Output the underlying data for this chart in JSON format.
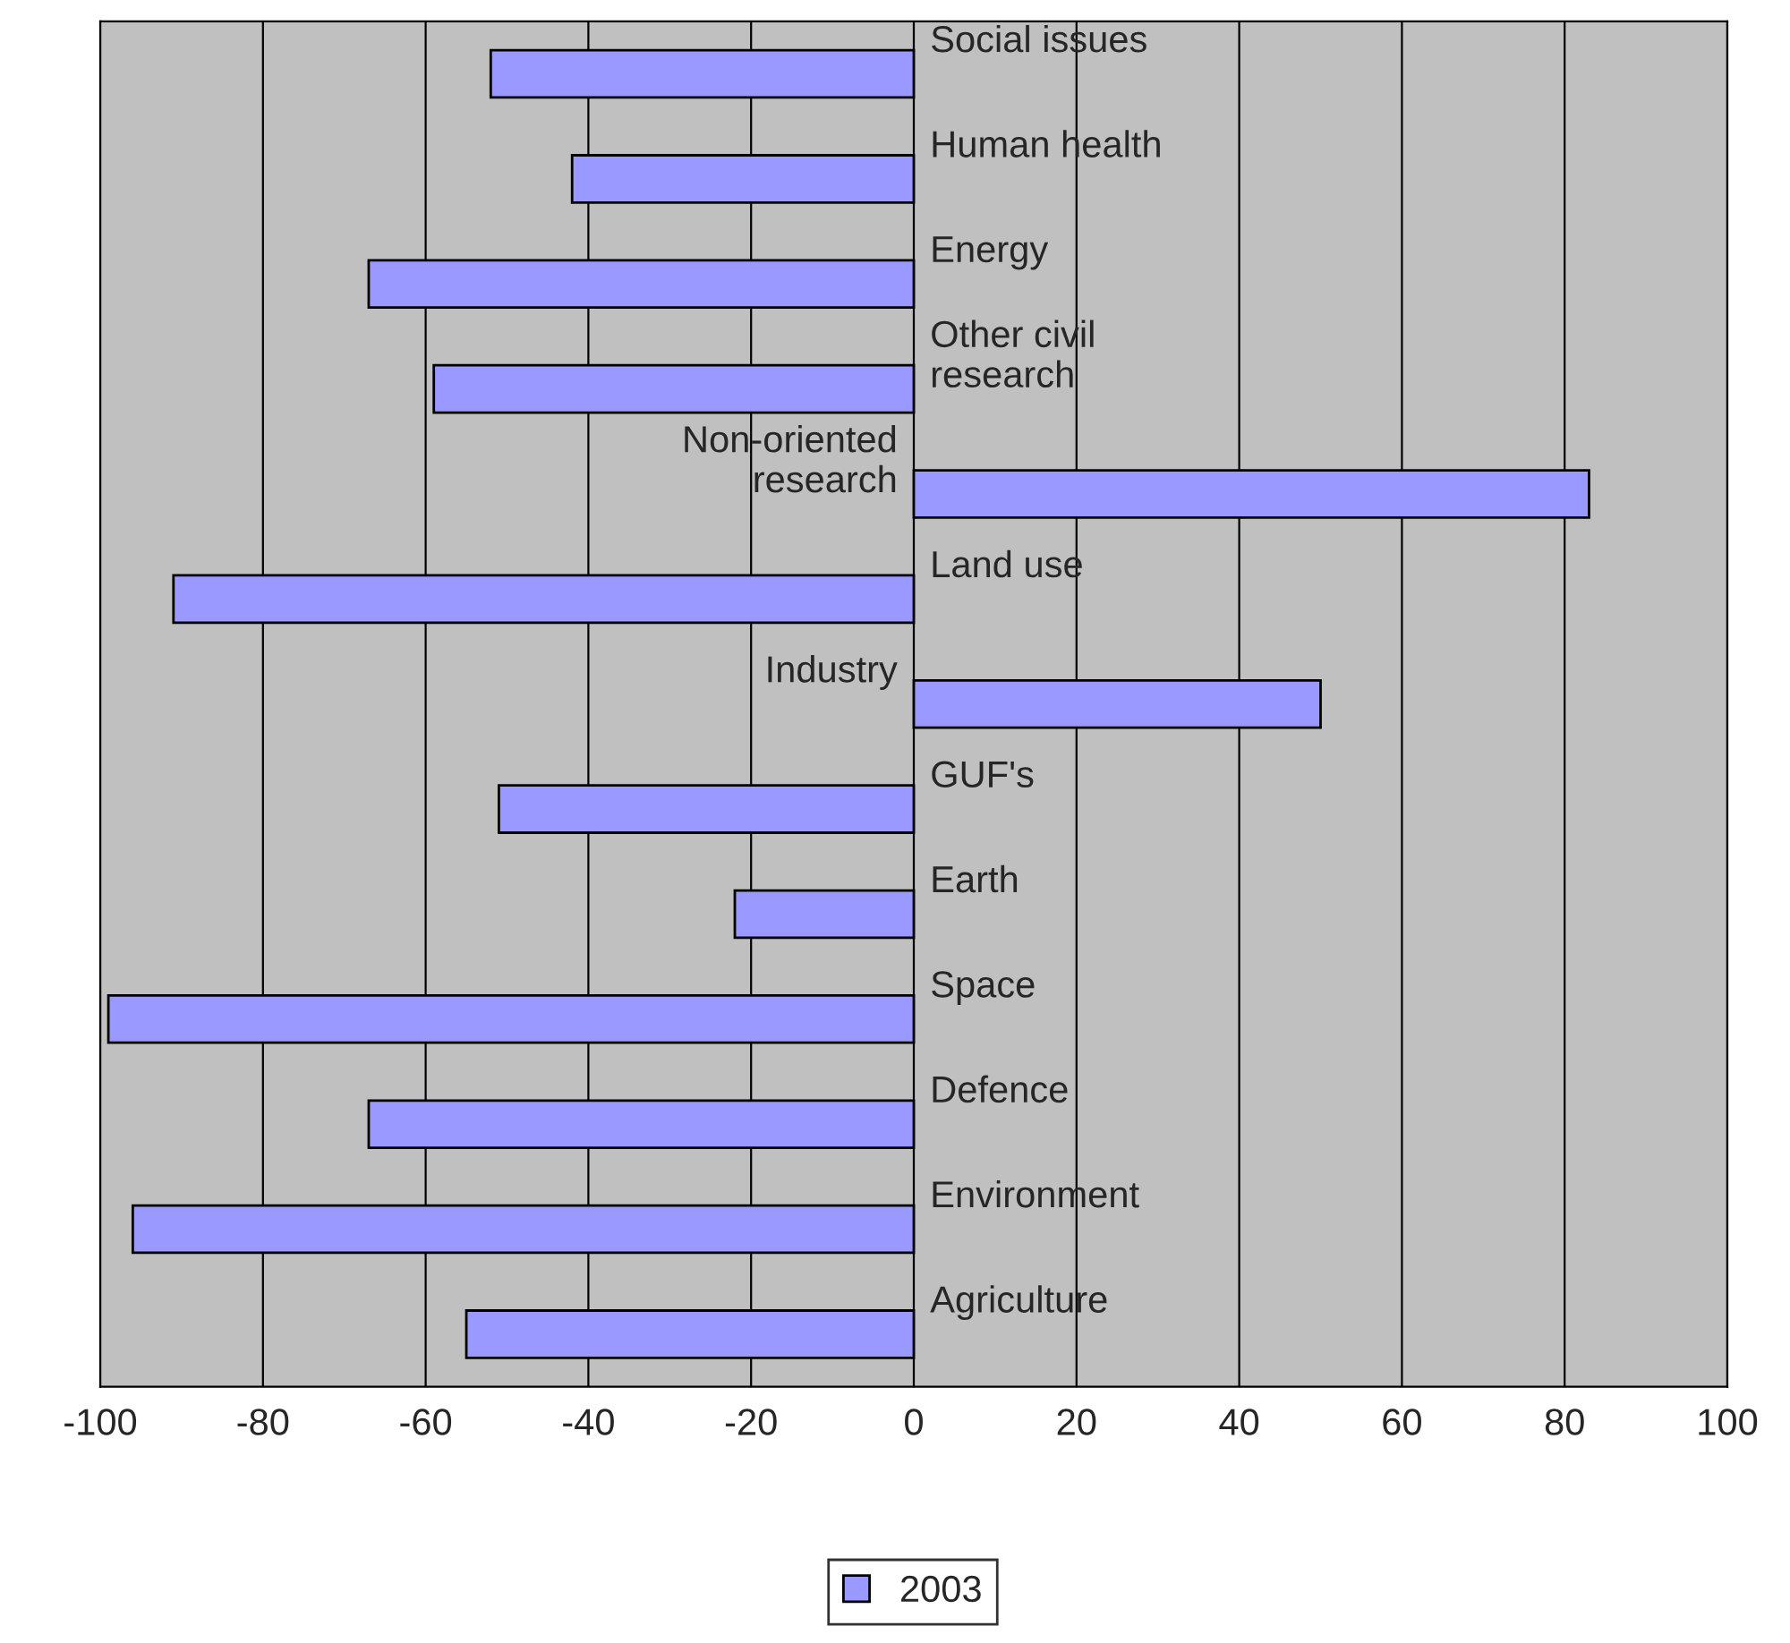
{
  "chart_data": {
    "type": "bar",
    "orientation": "horizontal",
    "categories": [
      "Social issues",
      "Human health",
      "Energy",
      "Other civil\nresearch",
      "Non-oriented\nresearch",
      "Land use",
      "Industry",
      "GUF's",
      "Earth",
      "Space",
      "Defence",
      "Environment",
      "Agriculture"
    ],
    "series": [
      {
        "name": "2003",
        "color": "#9999ff",
        "values": [
          -52,
          -42,
          -67,
          -59,
          83,
          -91,
          50,
          -51,
          -22,
          -99,
          -67,
          -96,
          -55
        ]
      }
    ],
    "xlim": [
      -100,
      100
    ],
    "xticks": [
      -100,
      -80,
      -60,
      -40,
      -20,
      0,
      20,
      40,
      60,
      80,
      100
    ],
    "grid": "x",
    "legend": "bottom"
  }
}
